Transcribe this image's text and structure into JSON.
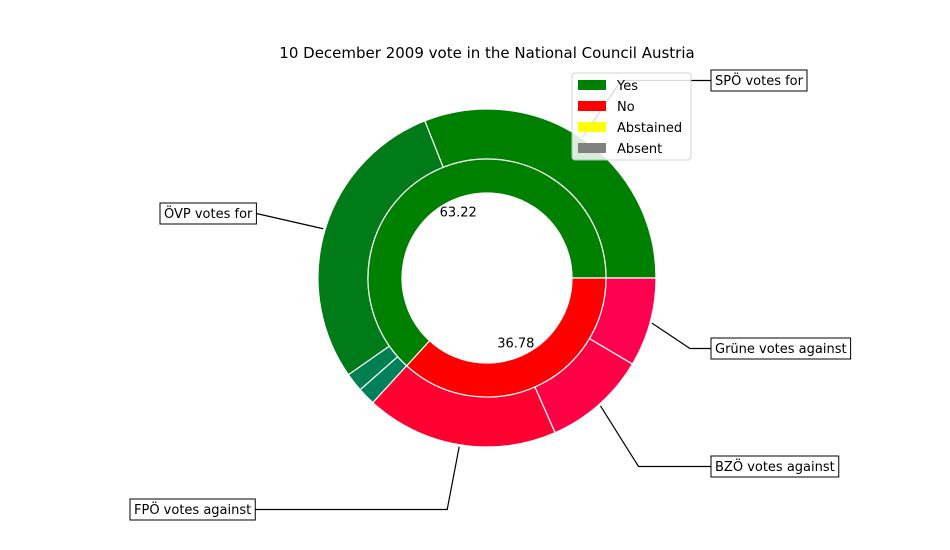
{
  "chart_data": {
    "type": "pie",
    "title": "10 December 2009 vote in the National Council Austria",
    "legend": {
      "placement": "top-right",
      "entries": [
        {
          "label": "Yes",
          "color": "#008000"
        },
        {
          "label": "No",
          "color": "#ff0000"
        },
        {
          "label": "Abstained",
          "color": "#ffff00"
        },
        {
          "label": "Absent",
          "color": "#808080"
        }
      ]
    },
    "inner_ring": [
      {
        "category": "Yes",
        "value": 63.22,
        "label": "63.22",
        "color": "#008000"
      },
      {
        "category": "No",
        "value": 36.78,
        "label": "36.78",
        "color": "#ff0000"
      }
    ],
    "outer_ring": [
      {
        "party": "SPÖ",
        "vote": "Yes",
        "value": 31.0,
        "color": "#008000"
      },
      {
        "party": "ÖVP",
        "vote": "Yes",
        "value": 28.7,
        "color": "#007b17"
      },
      {
        "party": "",
        "vote": "Yes",
        "value": 1.8,
        "color": "#008050"
      },
      {
        "party": "",
        "vote": "Yes",
        "value": 1.7,
        "color": "#00805a"
      },
      {
        "party": "FPÖ",
        "vote": "No",
        "value": 18.4,
        "color": "#ff0030"
      },
      {
        "party": "BZÖ",
        "vote": "No",
        "value": 9.9,
        "color": "#ff0046"
      },
      {
        "party": "Grüne",
        "vote": "No",
        "value": 8.5,
        "color": "#ff0050"
      }
    ],
    "annotations": [
      {
        "text": "SPÖ votes for",
        "slice": 0
      },
      {
        "text": "ÖVP votes for",
        "slice": 1
      },
      {
        "text": "FPÖ votes against",
        "slice": 4
      },
      {
        "text": "BZÖ votes against",
        "slice": 5
      },
      {
        "text": "Grüne votes against",
        "slice": 6
      }
    ]
  }
}
